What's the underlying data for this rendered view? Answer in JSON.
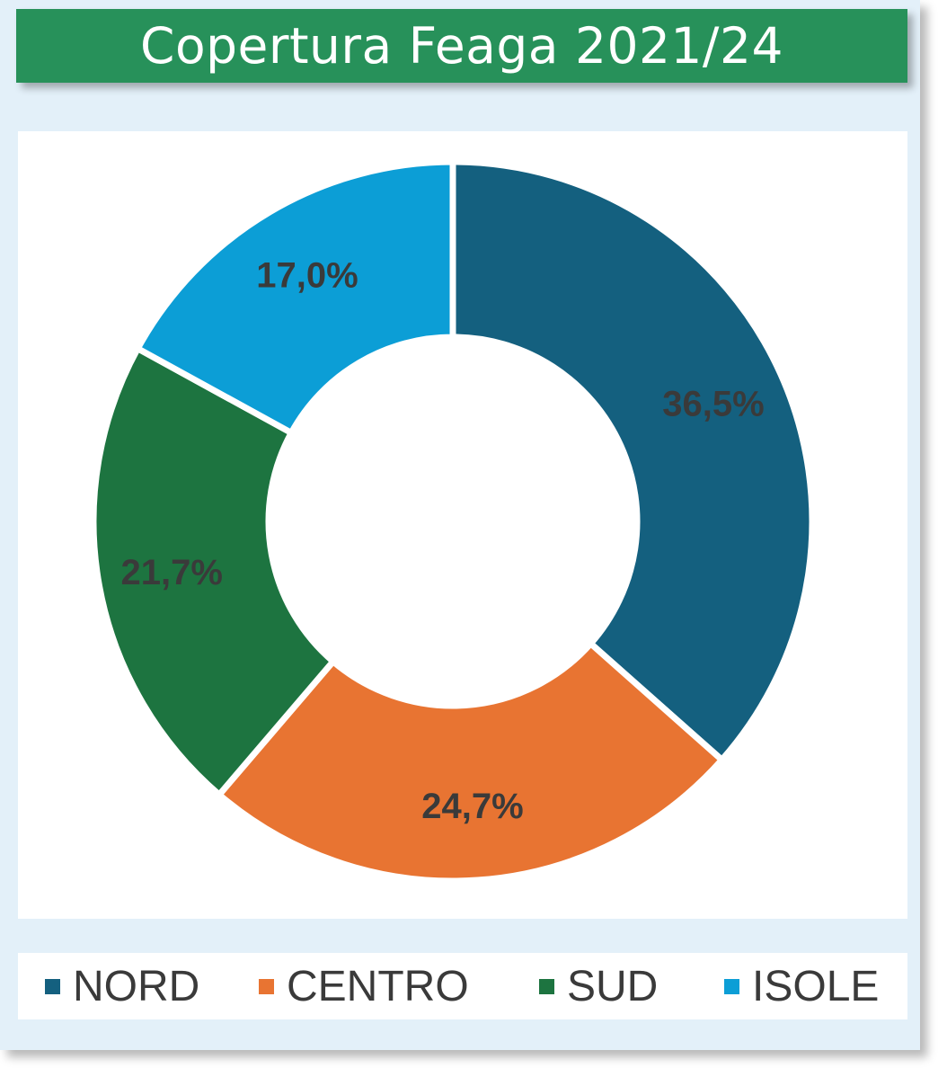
{
  "chart_data": {
    "type": "pie",
    "variant": "donut",
    "title": "Copertura Feaga 2021/24",
    "categories": [
      "NORD",
      "CENTRO",
      "SUD",
      "ISOLE"
    ],
    "values": [
      36.5,
      24.7,
      21.7,
      17.0
    ],
    "data_labels": [
      "36,5%",
      "24,7%",
      "21,7%",
      "17,0%"
    ],
    "colors": [
      "#14607f",
      "#e87432",
      "#1d7440",
      "#0c9ed6"
    ],
    "start_angle": "12 o'clock",
    "direction": "clockwise",
    "legend_position": "bottom"
  },
  "colors": {
    "background": "#e3f0f9",
    "title_bar": "#27915a",
    "title_text": "#ffffff",
    "label_text": "#3a3a3a"
  }
}
